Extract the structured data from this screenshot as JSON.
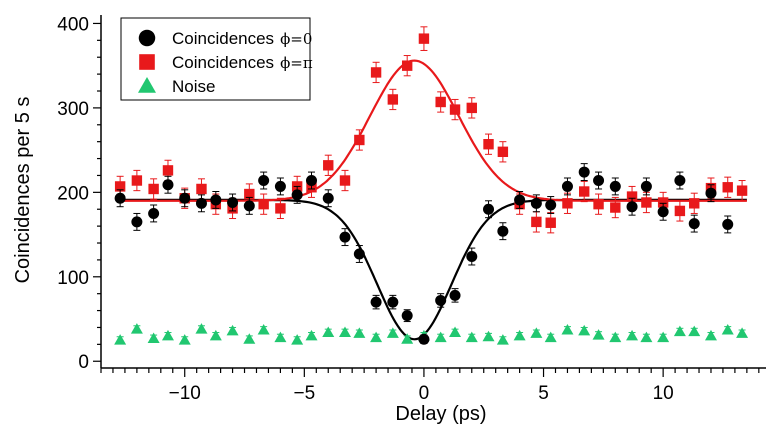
{
  "chart_data": {
    "type": "scatter",
    "title": "",
    "xlabel": "Delay (ps)",
    "ylabel": "Coincidences per 5 s",
    "xlim": [
      -13.5,
      14.3
    ],
    "ylim": [
      -8,
      410
    ],
    "xticks": [
      -10,
      -5,
      0,
      5,
      10
    ],
    "yticks": [
      0,
      100,
      200,
      300,
      400
    ],
    "x_minor_step": 0.5,
    "y_minor_step": 20,
    "grid": false,
    "legend_position": "top-left",
    "series": [
      {
        "name": "Coincidences",
        "name_suffix": "ϕ=0",
        "marker": "circle",
        "color": "#000000",
        "points": [
          [
            -12.7,
            193,
            10
          ],
          [
            -12.0,
            165,
            10
          ],
          [
            -11.3,
            175,
            10
          ],
          [
            -10.7,
            209,
            10
          ],
          [
            -10.0,
            193,
            10
          ],
          [
            -9.3,
            187,
            10
          ],
          [
            -8.7,
            191,
            10
          ],
          [
            -8.0,
            188,
            10
          ],
          [
            -7.3,
            184,
            10
          ],
          [
            -6.7,
            214,
            10
          ],
          [
            -6.0,
            207,
            10
          ],
          [
            -5.3,
            197,
            10
          ],
          [
            -4.7,
            214,
            10
          ],
          [
            -4.0,
            193,
            10
          ],
          [
            -3.3,
            147,
            10
          ],
          [
            -2.7,
            127,
            10
          ],
          [
            -2.0,
            70,
            8
          ],
          [
            -1.3,
            70,
            8
          ],
          [
            -0.7,
            54,
            7
          ],
          [
            0.0,
            26,
            5
          ],
          [
            0.7,
            72,
            8
          ],
          [
            1.3,
            78,
            8
          ],
          [
            2.0,
            124,
            10
          ],
          [
            2.7,
            180,
            10
          ],
          [
            3.3,
            154,
            10
          ],
          [
            4.0,
            191,
            10
          ],
          [
            4.7,
            187,
            10
          ],
          [
            5.3,
            185,
            10
          ],
          [
            6.0,
            207,
            10
          ],
          [
            6.7,
            224,
            10
          ],
          [
            7.3,
            214,
            10
          ],
          [
            8.0,
            207,
            10
          ],
          [
            8.7,
            183,
            10
          ],
          [
            9.3,
            207,
            10
          ],
          [
            10.0,
            177,
            10
          ],
          [
            10.7,
            214,
            10
          ],
          [
            11.3,
            163,
            10
          ],
          [
            12.0,
            199,
            10
          ],
          [
            12.7,
            162,
            10
          ]
        ]
      },
      {
        "name": "Coincidences",
        "name_suffix": "ϕ=π",
        "marker": "square",
        "color": "#e8191b",
        "points": [
          [
            -12.7,
            207,
            12
          ],
          [
            -12.0,
            214,
            12
          ],
          [
            -11.3,
            204,
            12
          ],
          [
            -10.7,
            226,
            12
          ],
          [
            -10.0,
            193,
            12
          ],
          [
            -9.3,
            204,
            12
          ],
          [
            -8.7,
            186,
            12
          ],
          [
            -8.0,
            181,
            12
          ],
          [
            -7.3,
            198,
            12
          ],
          [
            -6.7,
            186,
            12
          ],
          [
            -6.0,
            181,
            12
          ],
          [
            -5.3,
            207,
            12
          ],
          [
            -4.7,
            206,
            12
          ],
          [
            -4.0,
            232,
            12
          ],
          [
            -3.3,
            214,
            12
          ],
          [
            -2.7,
            262,
            12
          ],
          [
            -2.0,
            342,
            12
          ],
          [
            -1.3,
            310,
            12
          ],
          [
            -0.7,
            350,
            12
          ],
          [
            0.0,
            382,
            14
          ],
          [
            0.7,
            307,
            12
          ],
          [
            1.3,
            298,
            12
          ],
          [
            2.0,
            300,
            12
          ],
          [
            2.7,
            257,
            12
          ],
          [
            3.3,
            248,
            12
          ],
          [
            4.0,
            186,
            12
          ],
          [
            4.7,
            165,
            12
          ],
          [
            5.3,
            164,
            12
          ],
          [
            6.0,
            187,
            12
          ],
          [
            6.7,
            201,
            12
          ],
          [
            7.3,
            186,
            12
          ],
          [
            8.0,
            182,
            12
          ],
          [
            8.7,
            195,
            12
          ],
          [
            9.3,
            188,
            12
          ],
          [
            10.0,
            188,
            12
          ],
          [
            10.7,
            178,
            12
          ],
          [
            11.3,
            187,
            12
          ],
          [
            12.0,
            205,
            12
          ],
          [
            12.7,
            206,
            12
          ],
          [
            13.3,
            202,
            12
          ]
        ]
      },
      {
        "name": "Noise",
        "marker": "triangle",
        "color": "#21c770",
        "points": [
          [
            -12.7,
            25,
            4
          ],
          [
            -12.0,
            38,
            4
          ],
          [
            -11.3,
            27,
            4
          ],
          [
            -10.7,
            30,
            4
          ],
          [
            -10.0,
            25,
            4
          ],
          [
            -9.3,
            38,
            4
          ],
          [
            -8.7,
            30,
            4
          ],
          [
            -8.0,
            36,
            4
          ],
          [
            -7.3,
            26,
            4
          ],
          [
            -6.7,
            37,
            4
          ],
          [
            -6.0,
            28,
            4
          ],
          [
            -5.3,
            25,
            4
          ],
          [
            -4.7,
            30,
            4
          ],
          [
            -4.0,
            34,
            4
          ],
          [
            -3.3,
            34,
            4
          ],
          [
            -2.7,
            33,
            4
          ],
          [
            -2.0,
            28,
            4
          ],
          [
            -1.3,
            33,
            4
          ],
          [
            -0.7,
            26,
            4
          ],
          [
            0.0,
            30,
            4
          ],
          [
            0.7,
            28,
            4
          ],
          [
            1.3,
            34,
            4
          ],
          [
            2.0,
            28,
            4
          ],
          [
            2.7,
            29,
            4
          ],
          [
            3.3,
            25,
            4
          ],
          [
            4.0,
            30,
            4
          ],
          [
            4.7,
            33,
            4
          ],
          [
            5.3,
            28,
            4
          ],
          [
            6.0,
            37,
            4
          ],
          [
            6.7,
            36,
            4
          ],
          [
            7.3,
            31,
            4
          ],
          [
            8.0,
            28,
            4
          ],
          [
            8.7,
            30,
            4
          ],
          [
            9.3,
            28,
            4
          ],
          [
            10.0,
            28,
            4
          ],
          [
            10.7,
            35,
            4
          ],
          [
            11.3,
            35,
            4
          ],
          [
            12.0,
            30,
            4
          ],
          [
            12.7,
            37,
            4
          ],
          [
            13.3,
            33,
            4
          ]
        ]
      }
    ],
    "fits": [
      {
        "series": "ϕ=0",
        "color": "#000000",
        "baseline": 191,
        "amplitude": -165,
        "center": -0.4,
        "sigma": 1.55,
        "x_range": [
          -12.7,
          13.5
        ]
      },
      {
        "series": "ϕ=π",
        "color": "#e8191b",
        "baseline": 190,
        "amplitude": 166,
        "center": -0.4,
        "sigma": 1.85,
        "x_range": [
          -12.7,
          13.5
        ]
      }
    ]
  }
}
